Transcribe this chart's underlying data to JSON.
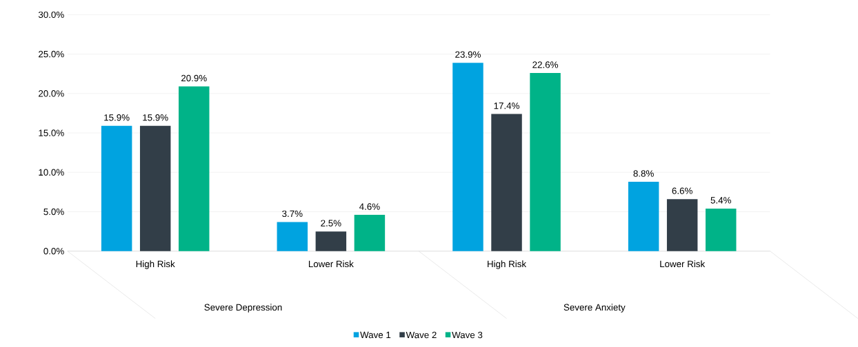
{
  "chart_data": {
    "type": "bar",
    "categories": [
      "High Risk",
      "Lower Risk",
      "High Risk",
      "Lower Risk"
    ],
    "series": [
      {
        "name": "Wave 1",
        "color": "#00a3e0",
        "values": [
          15.9,
          3.7,
          23.9,
          8.8
        ],
        "value_labels": [
          "15.9%",
          "3.7%",
          "23.9%",
          "8.8%"
        ]
      },
      {
        "name": "Wave 2",
        "color": "#323e48",
        "values": [
          15.9,
          2.5,
          17.4,
          6.6
        ],
        "value_labels": [
          "15.9%",
          "2.5%",
          "17.4%",
          "6.6%"
        ]
      },
      {
        "name": "Wave 3",
        "color": "#00b388",
        "values": [
          20.9,
          4.6,
          22.6,
          5.4
        ],
        "value_labels": [
          "20.9%",
          "4.6%",
          "22.6%",
          "5.4%"
        ]
      }
    ],
    "annotations": [
      "Severe Depression",
      "Severe Anxiety"
    ],
    "ylim": [
      0,
      30
    ],
    "yticks": [
      {
        "value": 0,
        "label": "0.0%"
      },
      {
        "value": 5,
        "label": "5.0%"
      },
      {
        "value": 10,
        "label": "10.0%"
      },
      {
        "value": 15,
        "label": "15.0%"
      },
      {
        "value": 20,
        "label": "20.0%"
      },
      {
        "value": 25,
        "label": "25.0%"
      },
      {
        "value": 30,
        "label": "30.0%"
      }
    ],
    "grid": "y",
    "legend": "bottom"
  }
}
